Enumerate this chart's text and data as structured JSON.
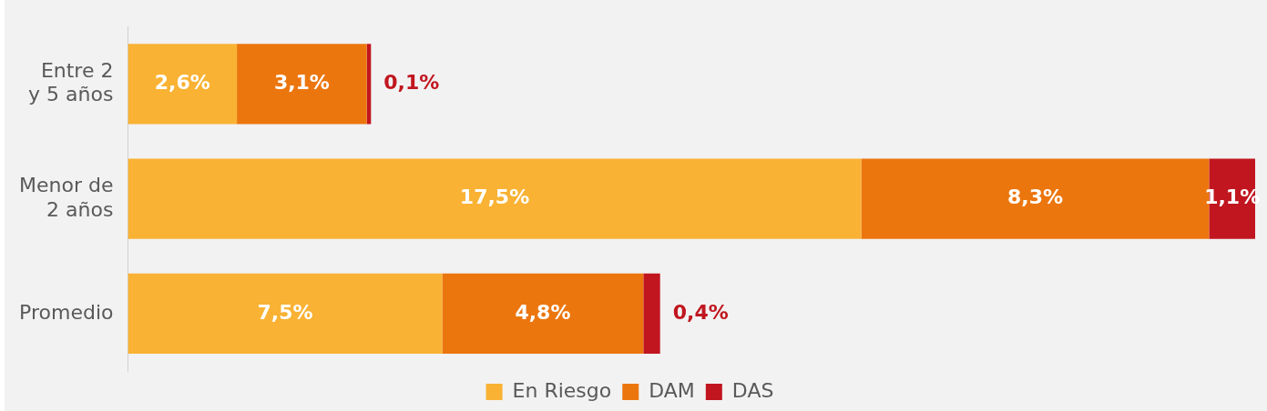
{
  "chart_data": {
    "type": "bar",
    "orientation": "horizontal",
    "stacked": true,
    "legend": "bottom",
    "categories": [
      "Entre 2 y 5 años",
      "Menor de 2 años",
      "Promedio"
    ],
    "series": [
      {
        "name": "En Riesgo",
        "color": "#f9b233",
        "values": [
          2.6,
          17.5,
          7.5
        ],
        "value_labels": [
          "2,6%",
          "17,5%",
          "7,5%"
        ]
      },
      {
        "name": "DAM",
        "color": "#ec760e",
        "values": [
          3.1,
          8.3,
          4.8
        ],
        "value_labels": [
          "3,1%",
          "8,3%",
          "4,8%"
        ]
      },
      {
        "name": "DAS",
        "color": "#c1161f",
        "values": [
          0.1,
          1.1,
          0.4
        ],
        "value_labels": [
          "0,1%",
          "1,1%",
          "0,4%"
        ]
      }
    ]
  }
}
